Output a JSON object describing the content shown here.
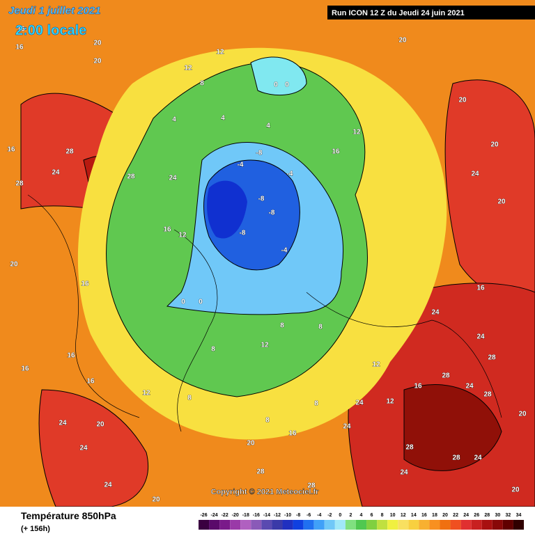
{
  "header": {
    "date": "Jeudi 1 juillet 2021",
    "time": "2:00 locale",
    "run": "Run ICON 12 Z du Jeudi 24 juin 2021"
  },
  "footer": {
    "title": "Température 850hPa",
    "lead": "(+ 156h)",
    "copyright": "Copyright © 2021 Meteociel.fr"
  },
  "legend": {
    "levels": [
      -26,
      -24,
      -22,
      -20,
      -18,
      -16,
      -14,
      -12,
      -10,
      -8,
      -6,
      -4,
      -2,
      0,
      2,
      4,
      6,
      8,
      10,
      12,
      14,
      16,
      18,
      20,
      22,
      24,
      26,
      28,
      30,
      32,
      34
    ],
    "colors": [
      "#3a0040",
      "#5a0a6a",
      "#7a1a8a",
      "#9a3aa8",
      "#b060c0",
      "#8a5ab8",
      "#5a4ab0",
      "#3a3aa8",
      "#2030c0",
      "#1040e0",
      "#2070f0",
      "#40a0f8",
      "#70c8f8",
      "#a0e8f8",
      "#80e080",
      "#50c850",
      "#80d040",
      "#c0e040",
      "#f0f040",
      "#f8e060",
      "#f8d040",
      "#f8b030",
      "#f89020",
      "#f07010",
      "#f05020",
      "#e03030",
      "#c82020",
      "#a81010",
      "#880808",
      "#600000",
      "#300000"
    ]
  },
  "map": {
    "contour_labels": [
      "16",
      "16",
      "20",
      "20",
      "16",
      "28",
      "24",
      "28",
      "28",
      "24",
      "16",
      "12",
      "20",
      "16",
      "16",
      "16",
      "16",
      "24",
      "20",
      "24",
      "24",
      "20",
      "8",
      "12",
      "12",
      "0",
      "0",
      "4",
      "4",
      "4",
      "-4",
      "-8",
      "-8",
      "-8",
      "-8",
      "-4",
      "-4",
      "0",
      "0",
      "8",
      "12",
      "8",
      "8",
      "12",
      "16",
      "20",
      "20",
      "20",
      "24",
      "20",
      "24",
      "16",
      "24",
      "28",
      "28",
      "24",
      "28",
      "20",
      "24",
      "24",
      "28",
      "28",
      "24",
      "24",
      "20",
      "20",
      "28",
      "28",
      "12",
      "8",
      "8",
      "16",
      "12",
      "16",
      "12",
      "8"
    ]
  }
}
